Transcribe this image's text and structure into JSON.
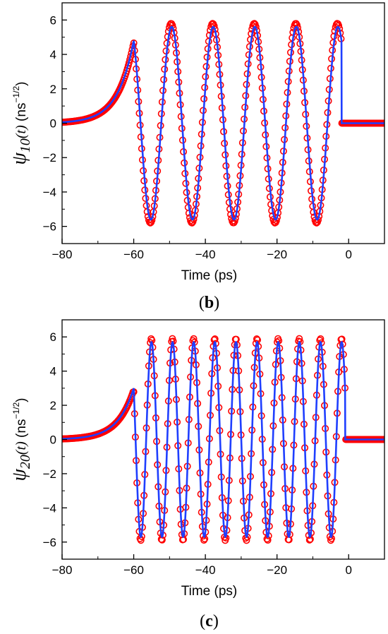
{
  "chart_data": [
    {
      "type": "line",
      "panel_label": "(b)",
      "panel_letter": "b",
      "xlabel": "Time (ps)",
      "ylabel": {
        "symbol": "ψ",
        "subscript": "10",
        "arg": "(t)",
        "unit": " (ns",
        "unit_sup": "−1/2",
        "unit_close": ")"
      },
      "xlim": [
        -80,
        10
      ],
      "ylim": [
        -7,
        7
      ],
      "xticks": [
        -80,
        -60,
        -40,
        -20,
        0
      ],
      "yticks": [
        -6,
        -4,
        -2,
        0,
        2,
        4,
        6
      ],
      "xtick_labels": [
        "−80",
        "−60",
        "−40",
        "−20",
        "0"
      ],
      "ytick_labels": [
        "−6",
        "−4",
        "−2",
        "0",
        "2",
        "4",
        "6"
      ],
      "series": [
        {
          "style": "open-circles",
          "color": "#ff0000",
          "params": {
            "t_start": -60,
            "t_end": -2,
            "period": 11.6,
            "amp": 5.8,
            "start_val": 4.7,
            "rise_tau": 4.5,
            "pre_start": -80
          }
        },
        {
          "style": "line",
          "color": "#1f3fff",
          "params": {
            "t_start": -60,
            "t_end": -2,
            "period": 11.6,
            "amp": 5.6,
            "start_val": 4.8,
            "rise_tau": 4.5,
            "pre_start": -80
          }
        }
      ]
    },
    {
      "type": "line",
      "panel_label": "(c)",
      "panel_letter": "c",
      "xlabel": "Time (ps)",
      "ylabel": {
        "symbol": "ψ",
        "subscript": "20",
        "arg": "(t)",
        "unit": " (ns",
        "unit_sup": "−1/2",
        "unit_close": ")"
      },
      "xlim": [
        -80,
        10
      ],
      "ylim": [
        -7,
        7
      ],
      "xticks": [
        -80,
        -60,
        -40,
        -20,
        0
      ],
      "yticks": [
        -6,
        -4,
        -2,
        0,
        2,
        4,
        6
      ],
      "xtick_labels": [
        "−80",
        "−60",
        "−40",
        "−20",
        "0"
      ],
      "ytick_labels": [
        "−6",
        "−4",
        "−2",
        "0",
        "2",
        "4",
        "6"
      ],
      "series": [
        {
          "style": "open-circles",
          "color": "#ff0000",
          "params": {
            "t_start": -60,
            "t_end": -1,
            "period": 5.9,
            "amp": 5.9,
            "start_val": 2.9,
            "rise_tau": 4.5,
            "pre_start": -80
          }
        },
        {
          "style": "line",
          "color": "#1f3fff",
          "params": {
            "t_start": -60,
            "t_end": -1,
            "period": 5.9,
            "amp": 5.7,
            "start_val": 3.0,
            "rise_tau": 4.5,
            "pre_start": -80
          }
        }
      ]
    }
  ]
}
